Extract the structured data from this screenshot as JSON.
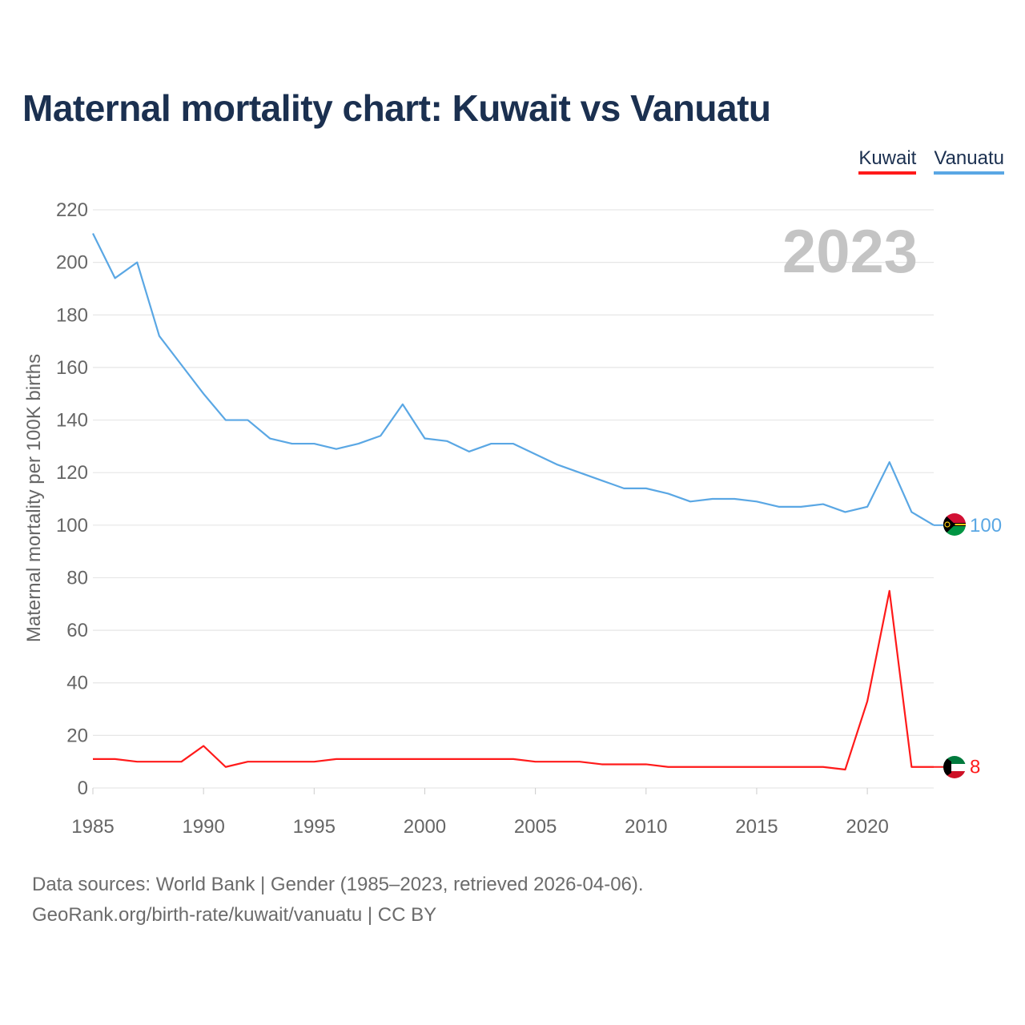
{
  "title": "Maternal mortality chart: Kuwait vs Vanuatu",
  "legend": [
    {
      "name": "Kuwait",
      "color": "#ff1a1a"
    },
    {
      "name": "Vanuatu",
      "color": "#5aa7e4"
    }
  ],
  "year_label": "2023",
  "footer": {
    "line1": "Data sources: World Bank | Gender (1985–2023, retrieved 2026-04-06).",
    "line2": "GeoRank.org/birth-rate/kuwait/vanuatu | CC BY"
  },
  "chart_data": {
    "type": "line",
    "title": "Maternal mortality chart: Kuwait vs Vanuatu",
    "xlabel": "",
    "ylabel": "Maternal mortality per 100K births",
    "xlim": [
      1985,
      2023
    ],
    "ylim": [
      0,
      220
    ],
    "x_ticks": [
      1985,
      1990,
      1995,
      2000,
      2005,
      2010,
      2015,
      2020
    ],
    "y_ticks": [
      0,
      20,
      40,
      60,
      80,
      100,
      120,
      140,
      160,
      180,
      200,
      220
    ],
    "grid": true,
    "x": [
      1985,
      1986,
      1987,
      1988,
      1989,
      1990,
      1991,
      1992,
      1993,
      1994,
      1995,
      1996,
      1997,
      1998,
      1999,
      2000,
      2001,
      2002,
      2003,
      2004,
      2005,
      2006,
      2007,
      2008,
      2009,
      2010,
      2011,
      2012,
      2013,
      2014,
      2015,
      2016,
      2017,
      2018,
      2019,
      2020,
      2021,
      2022,
      2023
    ],
    "series": [
      {
        "name": "Vanuatu",
        "color": "#5aa7e4",
        "end_label": "100",
        "values": [
          211,
          194,
          200,
          172,
          161,
          150,
          140,
          140,
          133,
          131,
          131,
          129,
          131,
          134,
          146,
          133,
          132,
          128,
          131,
          131,
          127,
          123,
          120,
          117,
          114,
          114,
          112,
          109,
          110,
          110,
          109,
          107,
          107,
          108,
          105,
          107,
          124,
          105,
          100
        ]
      },
      {
        "name": "Kuwait",
        "color": "#ff1a1a",
        "end_label": "8",
        "values": [
          11,
          11,
          10,
          10,
          10,
          16,
          8,
          10,
          10,
          10,
          10,
          11,
          11,
          11,
          11,
          11,
          11,
          11,
          11,
          11,
          10,
          10,
          10,
          9,
          9,
          9,
          8,
          8,
          8,
          8,
          8,
          8,
          8,
          8,
          7,
          33,
          75,
          8,
          8
        ]
      }
    ]
  }
}
